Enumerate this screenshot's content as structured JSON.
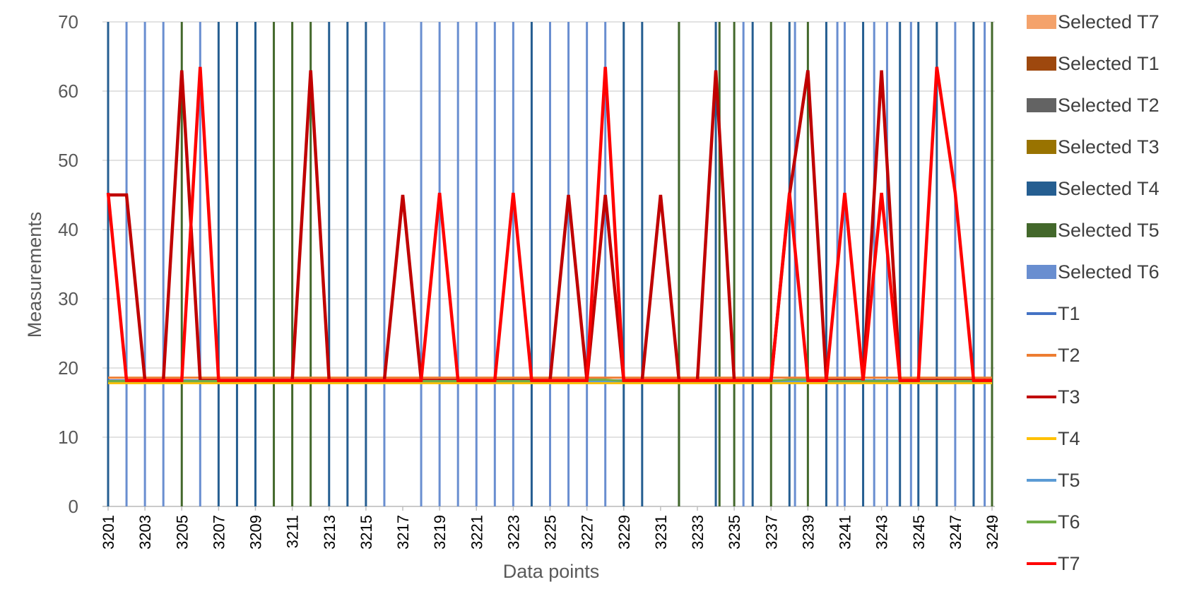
{
  "chart_data": {
    "type": "line",
    "xlabel": "Data points",
    "ylabel": "Measurements",
    "ylim": [
      0,
      70
    ],
    "y_ticks": [
      0,
      10,
      20,
      30,
      40,
      50,
      60,
      70
    ],
    "x_range": [
      3201,
      3249
    ],
    "x_tick_labels": [
      "3201",
      "3203",
      "3205",
      "3207",
      "3209",
      "3211",
      "3213",
      "3215",
      "3217",
      "3219",
      "3221",
      "3223",
      "3225",
      "3227",
      "3229",
      "3231",
      "3233",
      "3235",
      "3237",
      "3239",
      "3241",
      "3243",
      "3245",
      "3247",
      "3249"
    ],
    "grid": "horizontal",
    "legend_position": "right",
    "selected_markers": [
      {
        "name": "Selected T7",
        "color": "#F4A26B",
        "x": []
      },
      {
        "name": "Selected T1",
        "color": "#9E480E",
        "x": []
      },
      {
        "name": "Selected T2",
        "color": "#636363",
        "x": []
      },
      {
        "name": "Selected T3",
        "color": "#997300",
        "x": []
      },
      {
        "name": "Selected T4",
        "color": "#255E91",
        "x": [
          3201,
          3207,
          3208,
          3209,
          3213,
          3214,
          3215,
          3224,
          3229,
          3230,
          3232,
          3234,
          3236,
          3238,
          3240,
          3242,
          3244,
          3245,
          3246,
          3248
        ]
      },
      {
        "name": "Selected T5",
        "color": "#43682B",
        "x": [
          3205,
          3210,
          3211,
          3212,
          3232,
          3234.2,
          3235,
          3237,
          3239,
          3249
        ]
      },
      {
        "name": "Selected T6",
        "color": "#698ED0",
        "x": [
          3202,
          3203,
          3204,
          3206,
          3216,
          3218,
          3219,
          3220,
          3221,
          3222,
          3223,
          3225,
          3226,
          3227,
          3228,
          3235.5,
          3238.3,
          3240.6,
          3241,
          3242.6,
          3243.3,
          3244.6,
          3247,
          3248.6
        ]
      }
    ],
    "series": [
      {
        "name": "T1",
        "color": "#4472C4",
        "values": [
          18.2,
          18.2,
          18.2,
          18.2,
          18.2,
          18.2,
          18.2,
          18.2,
          18.2,
          18.2,
          18.2,
          18.2,
          18.2,
          18.2,
          18.2,
          18.2,
          18.2,
          18.2,
          18.2,
          18.2,
          18.2,
          18.2,
          18.2,
          18.2,
          18.2,
          18.2,
          18.2,
          18.2,
          18.2,
          18.2,
          18.2,
          18.2,
          18.2,
          18.2,
          18.2,
          18.2,
          18.2,
          18.2,
          18.2,
          18.2,
          18.2,
          18.2,
          18.2,
          18.2,
          18.2,
          18.2,
          18.2,
          18.2,
          18.2
        ]
      },
      {
        "name": "T2",
        "color": "#ED7D31",
        "values": [
          18.6,
          18.6,
          18.6,
          18.6,
          18.6,
          18.6,
          18.6,
          18.6,
          18.6,
          18.6,
          18.6,
          18.6,
          18.6,
          18.6,
          18.6,
          18.6,
          18.6,
          18.6,
          18.6,
          18.6,
          18.6,
          18.6,
          18.6,
          18.6,
          18.6,
          18.6,
          18.6,
          18.6,
          18.6,
          18.6,
          18.6,
          18.6,
          18.6,
          18.6,
          18.6,
          18.6,
          18.6,
          18.6,
          18.6,
          18.6,
          18.6,
          18.6,
          18.6,
          18.6,
          18.6,
          18.6,
          18.6,
          18.6,
          18.6
        ]
      },
      {
        "name": "T3",
        "color": "#C00000",
        "values": [
          45,
          45,
          18.2,
          18.2,
          63,
          18.2,
          18.2,
          18.2,
          18.2,
          18.2,
          18.2,
          63,
          18.2,
          18.2,
          18.2,
          18.2,
          45,
          18.2,
          18.2,
          18.2,
          18.2,
          18.2,
          18.2,
          18.2,
          18.2,
          45,
          18.2,
          45,
          18.2,
          18.2,
          45,
          18.2,
          18.2,
          63,
          18.2,
          18.2,
          18.2,
          45,
          63,
          18.2,
          18.2,
          18.2,
          63,
          18.2,
          18.2,
          18.2,
          18.2,
          18.2,
          18.2
        ]
      },
      {
        "name": "T4",
        "color": "#FFC000",
        "values": [
          17.8,
          17.8,
          17.8,
          17.8,
          17.8,
          17.8,
          17.8,
          17.8,
          17.8,
          17.8,
          17.8,
          17.8,
          17.8,
          17.8,
          17.8,
          17.8,
          17.8,
          17.8,
          17.8,
          17.8,
          17.8,
          17.8,
          17.8,
          17.8,
          17.8,
          17.8,
          17.8,
          17.8,
          17.8,
          17.8,
          17.8,
          17.8,
          17.8,
          17.8,
          17.8,
          17.8,
          17.8,
          17.8,
          17.8,
          17.8,
          17.8,
          17.8,
          17.8,
          17.8,
          17.8,
          17.8,
          17.8,
          17.8,
          17.8
        ]
      },
      {
        "name": "T5",
        "color": "#5B9BD5",
        "values": [
          18.1,
          18.1,
          18.1,
          18.1,
          18.1,
          18.1,
          18.1,
          18.1,
          18.1,
          18.1,
          18.1,
          18.1,
          18.1,
          18.1,
          18.1,
          18.1,
          18.1,
          18.1,
          18.1,
          18.1,
          18.1,
          18.1,
          18.1,
          18.1,
          18.1,
          18.1,
          18.1,
          18.1,
          18.1,
          18.1,
          18.1,
          18.1,
          18.1,
          18.1,
          18.1,
          18.1,
          18.1,
          18.1,
          18.1,
          18.1,
          18.1,
          18.1,
          18.1,
          18.1,
          18.1,
          18.1,
          18.1,
          18.1,
          18.1
        ]
      },
      {
        "name": "T6",
        "color": "#70AD47",
        "values": [
          18.1,
          18.1,
          18.1,
          18.1,
          18.1,
          18.1,
          18.1,
          18.1,
          18.1,
          18.1,
          18.1,
          18.1,
          18.1,
          18.1,
          18.1,
          18.1,
          18.1,
          18.1,
          18.1,
          18.1,
          18.1,
          18.1,
          18.1,
          18.1,
          18.1,
          18.1,
          18.3,
          18.3,
          18.1,
          18.1,
          18.1,
          18.1,
          18.1,
          18.1,
          18.1,
          18.1,
          18.1,
          18.3,
          18.3,
          18.1,
          18.1,
          18.1,
          18.1,
          18.1,
          18.1,
          18.1,
          18.1,
          18.1,
          18.1
        ]
      },
      {
        "name": "T7",
        "color": "#FF0000",
        "values": [
          45.3,
          18.2,
          18.2,
          18.2,
          18.2,
          63.5,
          18.2,
          18.2,
          18.2,
          18.2,
          18.2,
          18.2,
          18.2,
          18.2,
          18.2,
          18.2,
          18.2,
          18.2,
          45.3,
          18.2,
          18.2,
          18.2,
          45.3,
          18.2,
          18.2,
          18.2,
          18.2,
          63.5,
          18.2,
          18.2,
          18.2,
          18.2,
          18.2,
          18.2,
          18.2,
          18.2,
          18.2,
          45.3,
          18.2,
          18.2,
          45.3,
          18.2,
          45.3,
          18.2,
          18.2,
          63.5,
          45.3,
          18.2,
          18.2
        ]
      }
    ]
  }
}
